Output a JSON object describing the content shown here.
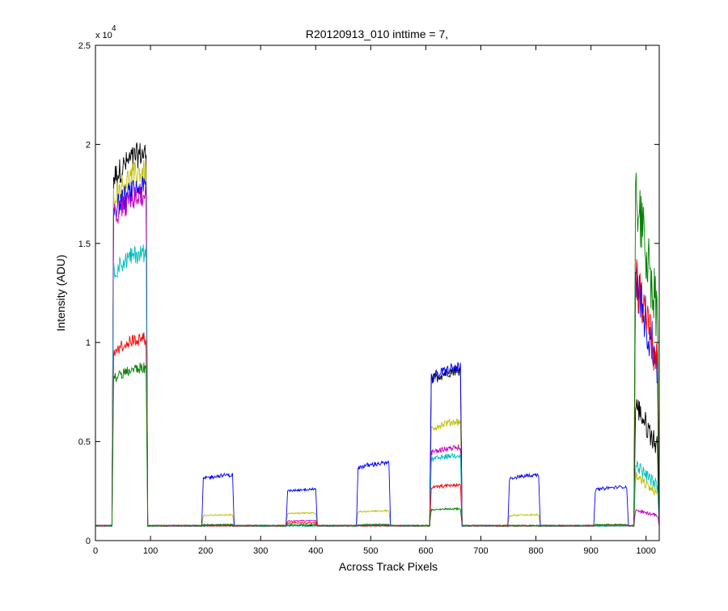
{
  "chart_data": {
    "type": "line",
    "title": "R20120913_010 inttime = 7,",
    "xlabel": "Across Track Pixels",
    "ylabel": "Intensity (ADU)",
    "xlim": [
      0,
      1024
    ],
    "ylim": [
      0,
      25000
    ],
    "xticks": [
      0,
      100,
      200,
      300,
      400,
      500,
      600,
      700,
      800,
      900,
      1000
    ],
    "xtick_labels": [
      "0",
      "100",
      "200",
      "300",
      "400",
      "500",
      "600",
      "700",
      "800",
      "900",
      "1000"
    ],
    "yticks": [
      0,
      5000,
      10000,
      15000,
      20000,
      25000
    ],
    "ytick_labels": [
      "0",
      "0.5",
      "1",
      "1.5",
      "2",
      "2.5"
    ],
    "y_multiplier": {
      "base": "x 10",
      "exponent": "4"
    },
    "baseline": 750,
    "grid": false,
    "legend": "none",
    "plateaus": [
      {
        "start": 30,
        "end": 95
      },
      {
        "start": 193,
        "end": 252
      },
      {
        "start": 346,
        "end": 403
      },
      {
        "start": 474,
        "end": 536
      },
      {
        "start": 607,
        "end": 666
      },
      {
        "start": 749,
        "end": 808
      },
      {
        "start": 905,
        "end": 968
      },
      {
        "start": 978,
        "end": 1024
      }
    ],
    "series": [
      {
        "color": "#000000",
        "peak_levels": [
          19500,
          750,
          750,
          750,
          8600,
          750,
          750,
          5800
        ]
      },
      {
        "color": "#bfbf00",
        "peak_levels": [
          18600,
          1300,
          1400,
          1500,
          6000,
          1300,
          750,
          2800
        ]
      },
      {
        "color": "#0000ff",
        "peak_levels": [
          17800,
          3300,
          2600,
          3900,
          8700,
          3300,
          2700,
          11000
        ]
      },
      {
        "color": "#bf00bf",
        "peak_levels": [
          17400,
          800,
          1000,
          800,
          4700,
          750,
          750,
          1400
        ]
      },
      {
        "color": "#00bfbf",
        "peak_levels": [
          14500,
          750,
          750,
          750,
          4300,
          750,
          750,
          3300
        ]
      },
      {
        "color": "#ff0000",
        "peak_levels": [
          10200,
          750,
          900,
          750,
          2800,
          750,
          800,
          11000
        ]
      },
      {
        "color": "#008000",
        "peak_levels": [
          8700,
          800,
          800,
          800,
          1600,
          750,
          800,
          14500
        ]
      }
    ]
  }
}
